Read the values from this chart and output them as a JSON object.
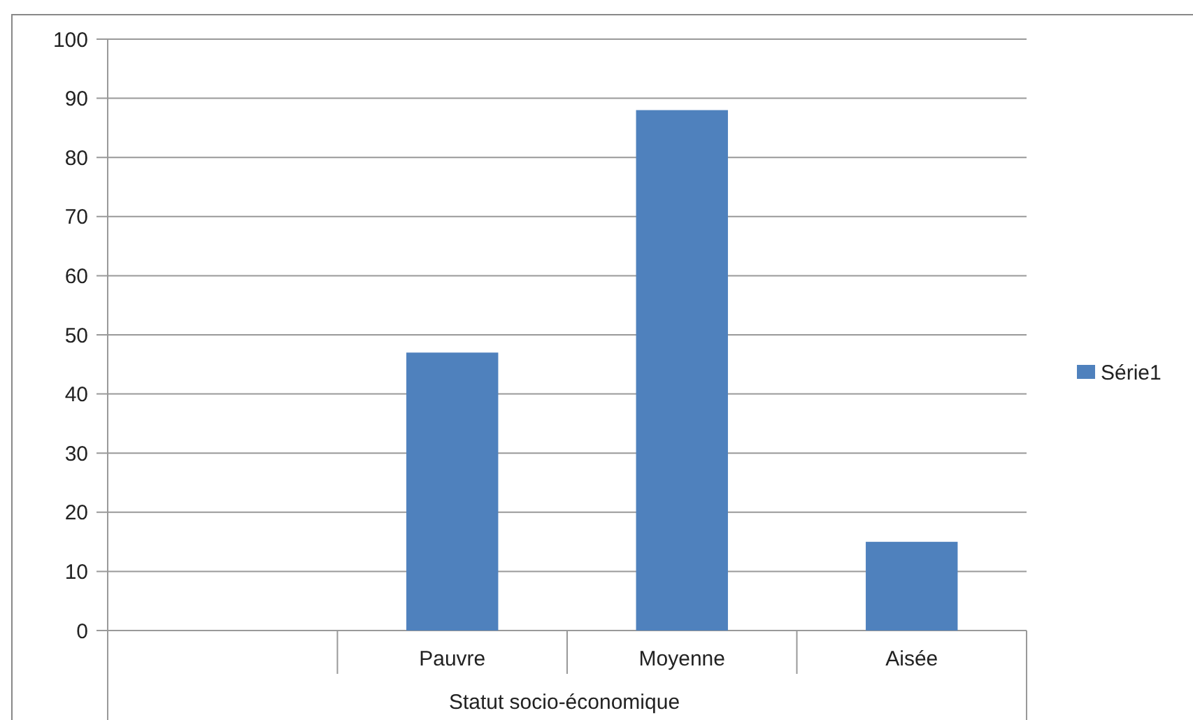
{
  "chart_data": {
    "type": "bar",
    "categories": [
      null,
      "Pauvre",
      "Moyenne",
      "Aisée"
    ],
    "series": [
      {
        "name": "Série1",
        "color": "#4f81bd",
        "values": [
          null,
          47,
          88,
          15
        ]
      }
    ],
    "xlabel": "Statut socio-économique",
    "ylim": [
      0,
      100
    ],
    "yticks": [
      0,
      10,
      20,
      30,
      40,
      50,
      60,
      70,
      80,
      90,
      100
    ],
    "grid": "y",
    "legend": "right"
  }
}
